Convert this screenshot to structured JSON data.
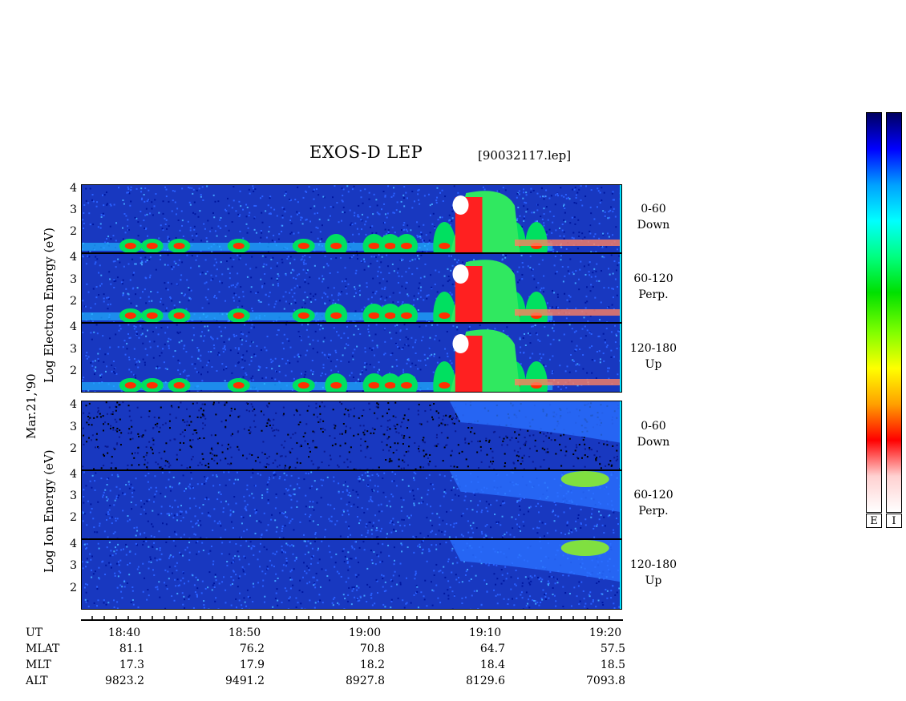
{
  "title": "EXOS-D LEP",
  "filename": "[90032117.lep]",
  "date_label": "Mar.21,'90",
  "electron_label": "Log    Electron  Energy (eV)",
  "ion_label": "Log    Ion   Energy (eV)",
  "y_ticks": [
    "4",
    "3",
    "2"
  ],
  "electron_panels": [
    {
      "label1": "0-60",
      "label2": "Down"
    },
    {
      "label1": "60-120",
      "label2": "Perp."
    },
    {
      "label1": "120-180",
      "label2": "Up"
    }
  ],
  "ion_panels": [
    {
      "label1": "0-60",
      "label2": "Down"
    },
    {
      "label1": "60-120",
      "label2": "Perp."
    },
    {
      "label1": "120-180",
      "label2": "Up"
    }
  ],
  "orbit": {
    "row_labels": [
      "UT",
      "MLAT",
      "MLT",
      "ALT"
    ],
    "ut": [
      "18:40",
      "18:50",
      "19:00",
      "19:10",
      "19:20"
    ],
    "mlat": [
      "81.1",
      "76.2",
      "70.8",
      "64.7",
      "57.5"
    ],
    "mlt": [
      "17.3",
      "17.9",
      "18.2",
      "18.4",
      "18.5"
    ],
    "alt": [
      "9823.2",
      "9491.2",
      "8927.8",
      "8129.6",
      "7093.8"
    ]
  },
  "colorbar_labels": {
    "electron": "E",
    "ion": "I"
  },
  "colors": {
    "background_low": "#1030c8",
    "colorbar": [
      "#000060",
      "#0000ff",
      "#00a0ff",
      "#00ffff",
      "#00ff80",
      "#00e000",
      "#80ff00",
      "#ffff00",
      "#ffa000",
      "#ff0000",
      "#ffd0d0",
      "#ffffff"
    ]
  },
  "chart_data": {
    "type": "heatmap",
    "title": "EXOS-D LEP",
    "xlabel": "UT",
    "ylabel": "Log Energy (eV)",
    "xlim": [
      "18:35",
      "19:21"
    ],
    "ylim": [
      1,
      4.2
    ],
    "x_ticks": [
      "18:40",
      "18:50",
      "19:00",
      "19:10",
      "19:20"
    ],
    "y_ticks": [
      2,
      3,
      4
    ],
    "panels": [
      "Electron 0-60 Down",
      "Electron 60-120 Perp.",
      "Electron 120-180 Up",
      "Ion 0-60 Down",
      "Ion 60-120 Perp.",
      "Ion 120-180 Up"
    ]
  }
}
